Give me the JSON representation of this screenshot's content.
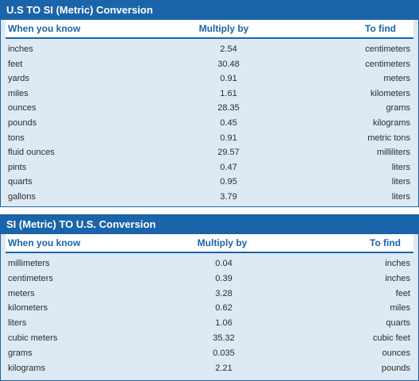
{
  "us_to_si": {
    "title": "U.S TO SI (Metric) Conversion",
    "headers": {
      "know": "When you know",
      "multiply": "Multiply by",
      "find": "To find"
    },
    "rows": [
      {
        "know": "inches",
        "multiply": "2.54",
        "find": "centimeters"
      },
      {
        "know": "feet",
        "multiply": "30.48",
        "find": "centimeters"
      },
      {
        "know": "yards",
        "multiply": "0.91",
        "find": "meters"
      },
      {
        "know": "miles",
        "multiply": "1.61",
        "find": "kilometers"
      },
      {
        "know": "ounces",
        "multiply": "28.35",
        "find": "grams"
      },
      {
        "know": "pounds",
        "multiply": "0.45",
        "find": "kilograms"
      },
      {
        "know": "tons",
        "multiply": "0.91",
        "find": "metric tons"
      },
      {
        "know": "fluid ounces",
        "multiply": "29.57",
        "find": "milliliters"
      },
      {
        "know": "pints",
        "multiply": "0.47",
        "find": "liters"
      },
      {
        "know": "quarts",
        "multiply": "0.95",
        "find": "liters"
      },
      {
        "know": "gallons",
        "multiply": "3.79",
        "find": "liters"
      }
    ]
  },
  "si_to_us": {
    "title": "SI (Metric) TO U.S. Conversion",
    "headers": {
      "know": "When you know",
      "multiply": "Multiply by",
      "find": "To find"
    },
    "rows": [
      {
        "know": "millimeters",
        "multiply": "0.04",
        "find": "inches"
      },
      {
        "know": "centimeters",
        "multiply": "0.39",
        "find": "inches"
      },
      {
        "know": "meters",
        "multiply": "3.28",
        "find": "feet"
      },
      {
        "know": "kilometers",
        "multiply": "0.62",
        "find": "miles"
      },
      {
        "know": "liters",
        "multiply": "1.06",
        "find": "quarts"
      },
      {
        "know": "cubic meters",
        "multiply": "35.32",
        "find": "cubic feet"
      },
      {
        "know": "grams",
        "multiply": "0.035",
        "find": "ounces"
      },
      {
        "know": "kilograms",
        "multiply": "2.21",
        "find": "pounds"
      }
    ]
  }
}
